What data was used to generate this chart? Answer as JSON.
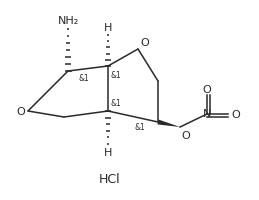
{
  "background": "#ffffff",
  "hcl_text": "HCl",
  "nh2_text": "NH₂",
  "h_top_text": "H",
  "h_bot_text": "H",
  "o_left_text": "O",
  "o_top_text": "O",
  "o_link_text": "O",
  "n_text": "N",
  "o_n_top": "O",
  "o_n_right": "O",
  "stereo_label": "&1",
  "line_color": "#2a2a2a",
  "text_color": "#2a2a2a",
  "font_size": 8.0,
  "stereo_fs": 5.5
}
